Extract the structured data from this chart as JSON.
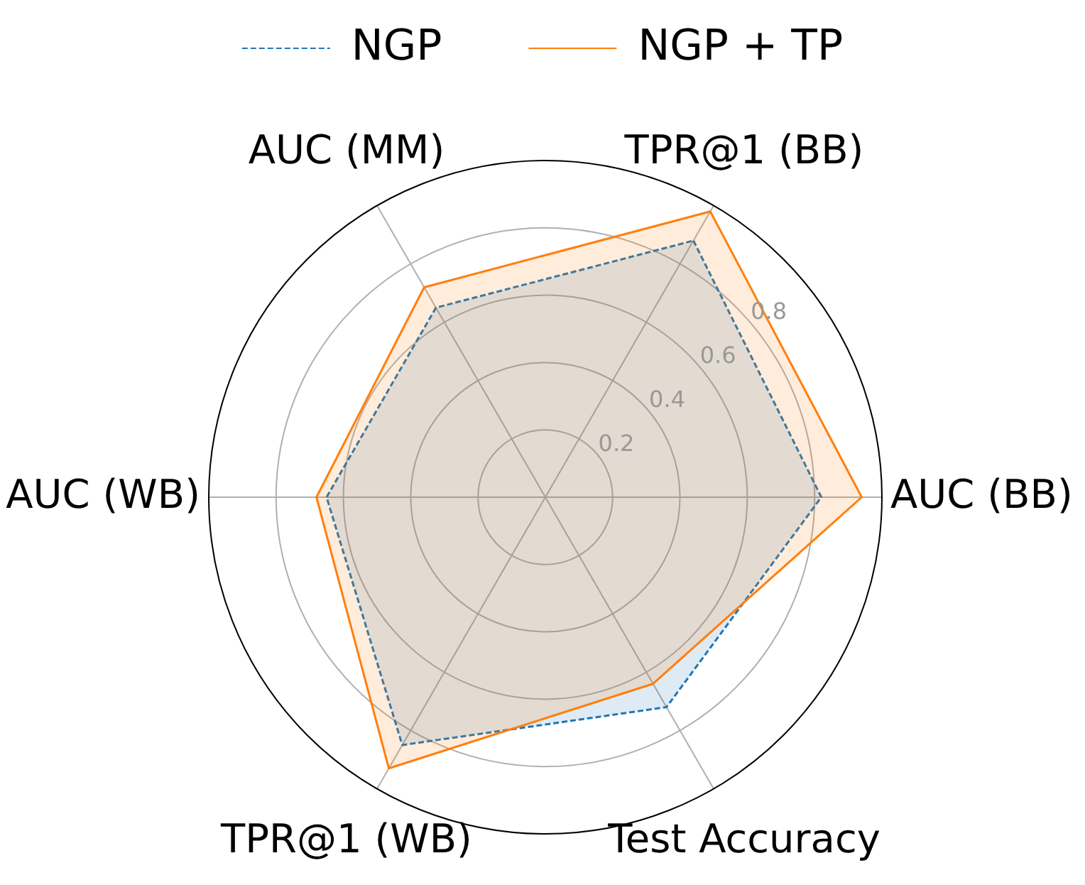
{
  "chart_data": {
    "type": "radar",
    "categories": [
      "TPR@1 (BB)",
      "AUC (BB)",
      "Test Accuracy",
      "TPR@1 (WB)",
      "AUC (WB)",
      "AUC (MM)"
    ],
    "series": [
      {
        "name": "NGP",
        "color": "#1f77b4",
        "line_style": "dashed",
        "values": [
          0.88,
          0.82,
          0.72,
          0.85,
          0.65,
          0.65
        ]
      },
      {
        "name": "NGP + TP",
        "color": "#ff7f0e",
        "line_style": "solid",
        "values": [
          0.98,
          0.94,
          0.64,
          0.93,
          0.68,
          0.72
        ]
      }
    ],
    "ylim": [
      0,
      1
    ],
    "yticks": [
      0.2,
      0.4,
      0.6,
      0.8
    ],
    "grid": true,
    "legend": "top"
  }
}
